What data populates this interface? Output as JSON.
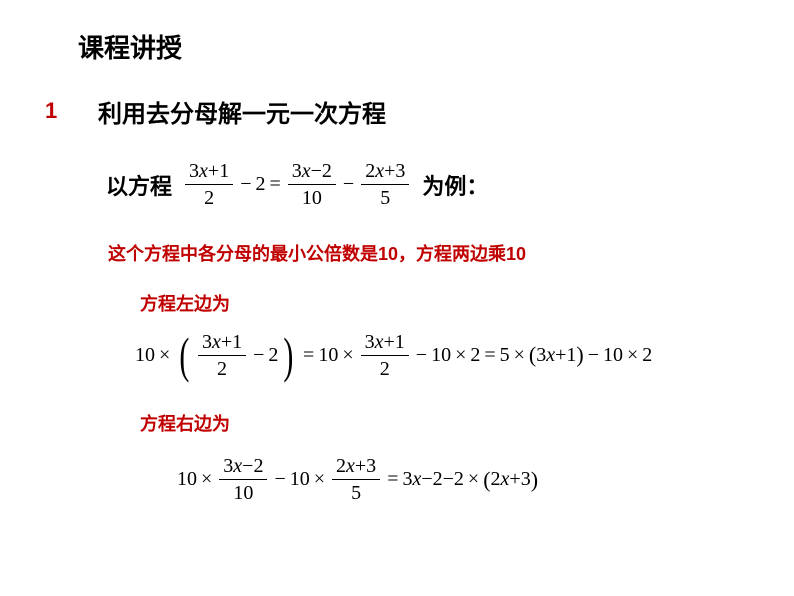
{
  "title": "课程讲授",
  "section": {
    "num": "1",
    "title": "利用去分母解一元一次方程"
  },
  "example": {
    "prefix": "以方程",
    "suffix": "为例：",
    "eq": {
      "f1_num_a": "3",
      "f1_num_x": "x",
      "f1_num_op": "+",
      "f1_num_b": "1",
      "f1_den": "2",
      "minus1": "−",
      "c1": "2",
      "eq": "=",
      "f2_num_a": "3",
      "f2_num_x": "x",
      "f2_num_op": "−",
      "f2_num_b": "2",
      "f2_den": "10",
      "minus2": "−",
      "f3_num_a": "2",
      "f3_num_x": "x",
      "f3_num_op": "+",
      "f3_num_b": "3",
      "f3_den": "5"
    }
  },
  "note1": "这个方程中各分母的最小公倍数是10，方程两边乘10",
  "note2": "方程左边为",
  "eq2": {
    "ten1": "10",
    "times": "×",
    "f1_num": "3x+1",
    "f1_den": "2",
    "minus1": "−",
    "c1": "2",
    "eqs": "=",
    "ten2": "10",
    "f2_num": "3x+1",
    "f2_den": "2",
    "minus2": "−",
    "ten3": "10",
    "c2": "2",
    "ten4": "5",
    "inner": "3x+1",
    "ten5": "10",
    "c3": "2"
  },
  "note3": "方程右边为",
  "eq3": {
    "ten1": "10",
    "times": "×",
    "f1_num": "3x−2",
    "f1_den": "10",
    "minus": "−",
    "ten2": "10",
    "f2_num": "2x+3",
    "f2_den": "5",
    "eqs": "=",
    "rhs1": "3x−2−2",
    "inner": "2x+3"
  },
  "colors": {
    "accent": "#c00000",
    "text": "#000000",
    "bg": "#ffffff"
  },
  "fonts": {
    "title_size": 26,
    "section_size": 24,
    "body_size": 22,
    "note_size": 18,
    "math_size": 20
  }
}
